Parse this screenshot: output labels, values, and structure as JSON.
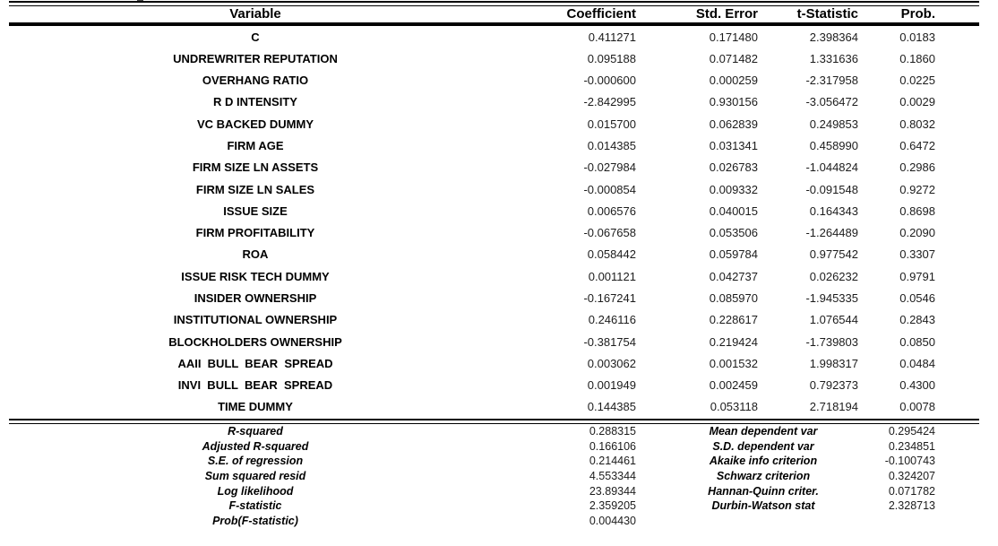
{
  "table": {
    "headers": [
      "Variable",
      "Coefficient",
      "Std. Error",
      "t-Statistic",
      "Prob."
    ],
    "rows": [
      {
        "variable": "C",
        "coefficient": "0.411271",
        "std_error": "0.171480",
        "t_statistic": "2.398364",
        "prob": "0.0183"
      },
      {
        "variable": "UNDREWRITER REPUTATION",
        "coefficient": "0.095188",
        "std_error": "0.071482",
        "t_statistic": "1.331636",
        "prob": "0.1860"
      },
      {
        "variable": "OVERHANG RATIO",
        "coefficient": "-0.000600",
        "std_error": "0.000259",
        "t_statistic": "-2.317958",
        "prob": "0.0225"
      },
      {
        "variable": "R D INTENSITY",
        "coefficient": "-2.842995",
        "std_error": "0.930156",
        "t_statistic": "-3.056472",
        "prob": "0.0029"
      },
      {
        "variable": "VC BACKED DUMMY",
        "coefficient": "0.015700",
        "std_error": "0.062839",
        "t_statistic": "0.249853",
        "prob": "0.8032"
      },
      {
        "variable": "FIRM AGE",
        "coefficient": "0.014385",
        "std_error": "0.031341",
        "t_statistic": "0.458990",
        "prob": "0.6472"
      },
      {
        "variable": "FIRM SIZE LN ASSETS",
        "coefficient": "-0.027984",
        "std_error": "0.026783",
        "t_statistic": "-1.044824",
        "prob": "0.2986"
      },
      {
        "variable": "FIRM SIZE LN SALES",
        "coefficient": "-0.000854",
        "std_error": "0.009332",
        "t_statistic": "-0.091548",
        "prob": "0.9272"
      },
      {
        "variable": "ISSUE SIZE",
        "coefficient": "0.006576",
        "std_error": "0.040015",
        "t_statistic": "0.164343",
        "prob": "0.8698"
      },
      {
        "variable": "FIRM PROFITABILITY",
        "coefficient": "-0.067658",
        "std_error": "0.053506",
        "t_statistic": "-1.264489",
        "prob": "0.2090"
      },
      {
        "variable": "ROA",
        "coefficient": "0.058442",
        "std_error": "0.059784",
        "t_statistic": "0.977542",
        "prob": "0.3307"
      },
      {
        "variable": "ISSUE RISK TECH DUMMY",
        "coefficient": "0.001121",
        "std_error": "0.042737",
        "t_statistic": "0.026232",
        "prob": "0.9791"
      },
      {
        "variable": "INSIDER OWNERSHIP",
        "coefficient": "-0.167241",
        "std_error": "0.085970",
        "t_statistic": "-1.945335",
        "prob": "0.0546"
      },
      {
        "variable": "INSTITUTIONAL OWNERSHIP",
        "coefficient": "0.246116",
        "std_error": "0.228617",
        "t_statistic": "1.076544",
        "prob": "0.2843"
      },
      {
        "variable": "BLOCKHOLDERS OWNERSHIP",
        "coefficient": "-0.381754",
        "std_error": "0.219424",
        "t_statistic": "-1.739803",
        "prob": "0.0850"
      },
      {
        "variable": "AAII  BULL  BEAR  SPREAD",
        "coefficient": "0.003062",
        "std_error": "0.001532",
        "t_statistic": "1.998317",
        "prob": "0.0484"
      },
      {
        "variable": "INVI  BULL  BEAR  SPREAD",
        "coefficient": "0.001949",
        "std_error": "0.002459",
        "t_statistic": "0.792373",
        "prob": "0.4300"
      },
      {
        "variable": "TIME DUMMY",
        "coefficient": "0.144385",
        "std_error": "0.053118",
        "t_statistic": "2.718194",
        "prob": "0.0078"
      }
    ]
  },
  "summary": {
    "left": [
      {
        "label": "R-squared",
        "value": "0.288315"
      },
      {
        "label": "Adjusted R-squared",
        "value": "0.166106"
      },
      {
        "label": "S.E. of regression",
        "value": "0.214461"
      },
      {
        "label": "Sum squared resid",
        "value": "4.553344"
      },
      {
        "label": "Log likelihood",
        "value": "23.89344"
      },
      {
        "label": "F-statistic",
        "value": "2.359205"
      },
      {
        "label": "Prob(F-statistic)",
        "value": "0.004430"
      }
    ],
    "right": [
      {
        "label": "Mean dependent var",
        "value": "0.295424"
      },
      {
        "label": "S.D. dependent var",
        "value": "0.234851"
      },
      {
        "label": "Akaike info criterion",
        "value": "-0.100743"
      },
      {
        "label": "Schwarz criterion",
        "value": "0.324207"
      },
      {
        "label": "Hannan-Quinn criter.",
        "value": "0.071782"
      },
      {
        "label": "Durbin-Watson stat",
        "value": "2.328713"
      }
    ]
  },
  "colors": {
    "text": "#000000",
    "rule": "#000000",
    "background": "#ffffff"
  }
}
